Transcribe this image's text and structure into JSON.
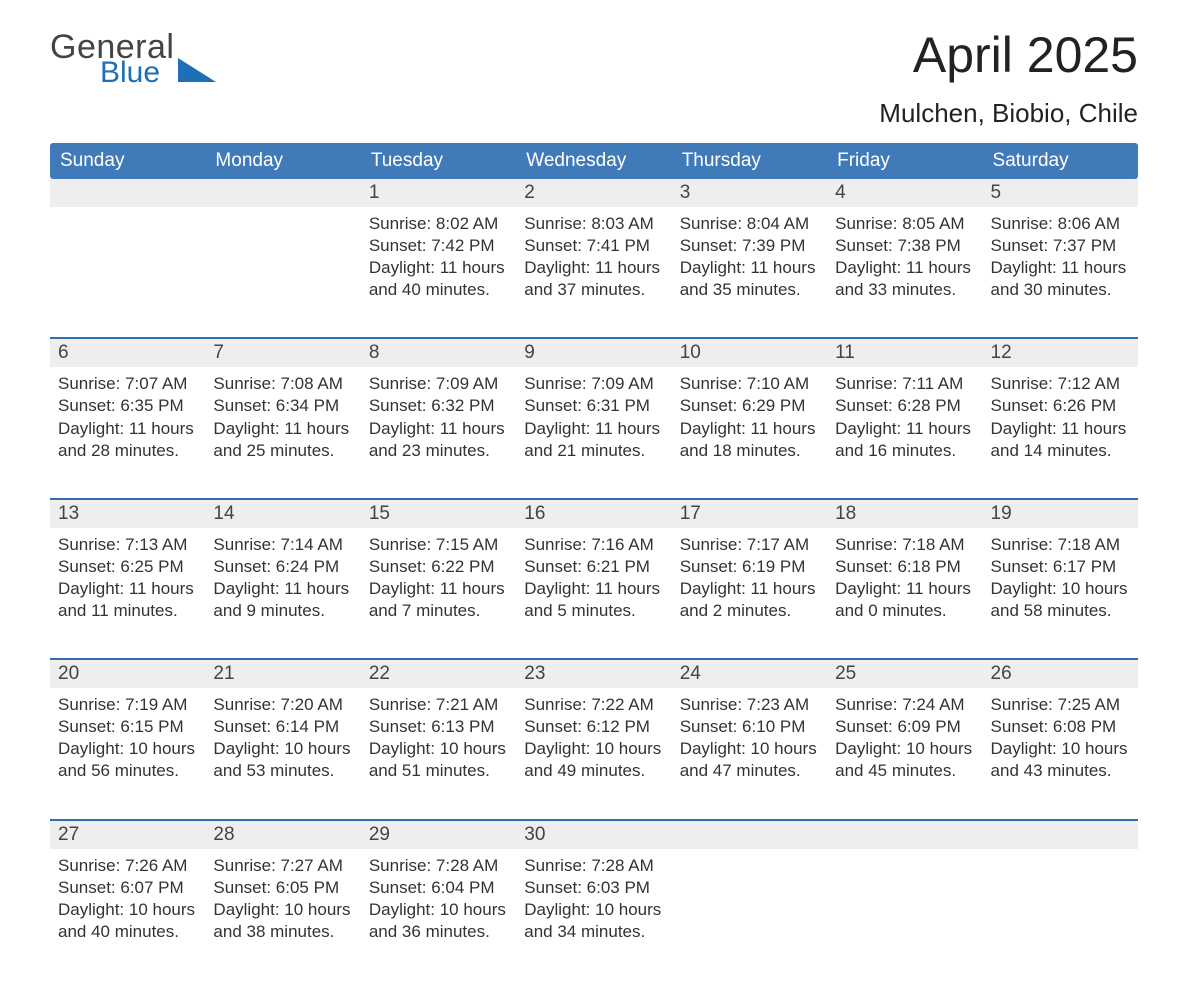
{
  "logo": {
    "line1": "General",
    "line2": "Blue"
  },
  "title": "April 2025",
  "location": "Mulchen, Biobio, Chile",
  "colors": {
    "header_blue": "#407ab8",
    "accent_blue": "#1f6fb6",
    "row_topline": "#2f6faf",
    "daynum_bg": "#eeeeee",
    "text": "#222222",
    "background": "#ffffff"
  },
  "calendar": {
    "day_headers": [
      "Sunday",
      "Monday",
      "Tuesday",
      "Wednesday",
      "Thursday",
      "Friday",
      "Saturday"
    ],
    "label_sunrise": "Sunrise",
    "label_sunset": "Sunset",
    "label_daylight": "Daylight",
    "weeks": [
      [
        null,
        null,
        {
          "n": 1,
          "sunrise": "8:02 AM",
          "sunset": "7:42 PM",
          "dl_h": 11,
          "dl_m": 40
        },
        {
          "n": 2,
          "sunrise": "8:03 AM",
          "sunset": "7:41 PM",
          "dl_h": 11,
          "dl_m": 37
        },
        {
          "n": 3,
          "sunrise": "8:04 AM",
          "sunset": "7:39 PM",
          "dl_h": 11,
          "dl_m": 35
        },
        {
          "n": 4,
          "sunrise": "8:05 AM",
          "sunset": "7:38 PM",
          "dl_h": 11,
          "dl_m": 33
        },
        {
          "n": 5,
          "sunrise": "8:06 AM",
          "sunset": "7:37 PM",
          "dl_h": 11,
          "dl_m": 30
        }
      ],
      [
        {
          "n": 6,
          "sunrise": "7:07 AM",
          "sunset": "6:35 PM",
          "dl_h": 11,
          "dl_m": 28
        },
        {
          "n": 7,
          "sunrise": "7:08 AM",
          "sunset": "6:34 PM",
          "dl_h": 11,
          "dl_m": 25
        },
        {
          "n": 8,
          "sunrise": "7:09 AM",
          "sunset": "6:32 PM",
          "dl_h": 11,
          "dl_m": 23
        },
        {
          "n": 9,
          "sunrise": "7:09 AM",
          "sunset": "6:31 PM",
          "dl_h": 11,
          "dl_m": 21
        },
        {
          "n": 10,
          "sunrise": "7:10 AM",
          "sunset": "6:29 PM",
          "dl_h": 11,
          "dl_m": 18
        },
        {
          "n": 11,
          "sunrise": "7:11 AM",
          "sunset": "6:28 PM",
          "dl_h": 11,
          "dl_m": 16
        },
        {
          "n": 12,
          "sunrise": "7:12 AM",
          "sunset": "6:26 PM",
          "dl_h": 11,
          "dl_m": 14
        }
      ],
      [
        {
          "n": 13,
          "sunrise": "7:13 AM",
          "sunset": "6:25 PM",
          "dl_h": 11,
          "dl_m": 11
        },
        {
          "n": 14,
          "sunrise": "7:14 AM",
          "sunset": "6:24 PM",
          "dl_h": 11,
          "dl_m": 9
        },
        {
          "n": 15,
          "sunrise": "7:15 AM",
          "sunset": "6:22 PM",
          "dl_h": 11,
          "dl_m": 7
        },
        {
          "n": 16,
          "sunrise": "7:16 AM",
          "sunset": "6:21 PM",
          "dl_h": 11,
          "dl_m": 5
        },
        {
          "n": 17,
          "sunrise": "7:17 AM",
          "sunset": "6:19 PM",
          "dl_h": 11,
          "dl_m": 2
        },
        {
          "n": 18,
          "sunrise": "7:18 AM",
          "sunset": "6:18 PM",
          "dl_h": 11,
          "dl_m": 0
        },
        {
          "n": 19,
          "sunrise": "7:18 AM",
          "sunset": "6:17 PM",
          "dl_h": 10,
          "dl_m": 58
        }
      ],
      [
        {
          "n": 20,
          "sunrise": "7:19 AM",
          "sunset": "6:15 PM",
          "dl_h": 10,
          "dl_m": 56
        },
        {
          "n": 21,
          "sunrise": "7:20 AM",
          "sunset": "6:14 PM",
          "dl_h": 10,
          "dl_m": 53
        },
        {
          "n": 22,
          "sunrise": "7:21 AM",
          "sunset": "6:13 PM",
          "dl_h": 10,
          "dl_m": 51
        },
        {
          "n": 23,
          "sunrise": "7:22 AM",
          "sunset": "6:12 PM",
          "dl_h": 10,
          "dl_m": 49
        },
        {
          "n": 24,
          "sunrise": "7:23 AM",
          "sunset": "6:10 PM",
          "dl_h": 10,
          "dl_m": 47
        },
        {
          "n": 25,
          "sunrise": "7:24 AM",
          "sunset": "6:09 PM",
          "dl_h": 10,
          "dl_m": 45
        },
        {
          "n": 26,
          "sunrise": "7:25 AM",
          "sunset": "6:08 PM",
          "dl_h": 10,
          "dl_m": 43
        }
      ],
      [
        {
          "n": 27,
          "sunrise": "7:26 AM",
          "sunset": "6:07 PM",
          "dl_h": 10,
          "dl_m": 40
        },
        {
          "n": 28,
          "sunrise": "7:27 AM",
          "sunset": "6:05 PM",
          "dl_h": 10,
          "dl_m": 38
        },
        {
          "n": 29,
          "sunrise": "7:28 AM",
          "sunset": "6:04 PM",
          "dl_h": 10,
          "dl_m": 36
        },
        {
          "n": 30,
          "sunrise": "7:28 AM",
          "sunset": "6:03 PM",
          "dl_h": 10,
          "dl_m": 34
        },
        null,
        null,
        null
      ]
    ]
  }
}
